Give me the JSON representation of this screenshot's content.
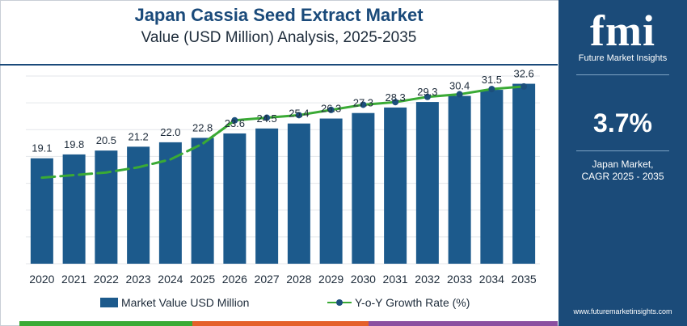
{
  "header": {
    "title": "Japan Cassia Seed Extract Market",
    "subtitle": "Value (USD Million) Analysis, 2025-2035"
  },
  "side_panel": {
    "logo_text": "fmi",
    "logo_tagline": "Future Market Insights",
    "cagr_value": "3.7%",
    "cagr_caption_line1": "Japan Market,",
    "cagr_caption_line2": "CAGR 2025 - 2035",
    "website": "www.futuremarketinsights.com"
  },
  "legend": {
    "bar_label": "Market Value USD Million",
    "line_label": "Y-o-Y Growth Rate (%)"
  },
  "colors": {
    "bar": "#1c5a8c",
    "line": "#3aaa35",
    "marker": "#1c4f7c",
    "brand": "#1b4b79",
    "footer_segments": [
      "#3aaa35",
      "#e4602a",
      "#8b4fa0",
      "#1b4b79"
    ]
  },
  "chart_data": {
    "type": "bar",
    "categories": [
      "2020",
      "2021",
      "2022",
      "2023",
      "2024",
      "2025",
      "2026",
      "2027",
      "2028",
      "2029",
      "2030",
      "2031",
      "2032",
      "2033",
      "2034",
      "2035"
    ],
    "series": [
      {
        "name": "Market Value USD Million",
        "type": "bar",
        "values": [
          19.1,
          19.8,
          20.5,
          21.2,
          22.0,
          22.8,
          23.6,
          24.5,
          25.4,
          26.3,
          27.3,
          28.3,
          29.3,
          30.4,
          31.5,
          32.6
        ],
        "labels": [
          "19.1",
          "19.8",
          "20.5",
          "21.2",
          "22.0",
          "22.8",
          "23.6",
          "24.5",
          "25.4",
          "26.3",
          "27.3",
          "28.3",
          "29.3",
          "30.4",
          "31.5",
          "32.6"
        ]
      },
      {
        "name": "Y-o-Y Growth Rate (%)",
        "type": "line",
        "markers_from_index": 6,
        "values": [
          3.3,
          3.4,
          3.5,
          3.7,
          4.0,
          4.6,
          5.5,
          5.6,
          5.7,
          5.9,
          6.1,
          6.2,
          6.4,
          6.5,
          6.7,
          6.8
        ]
      }
    ],
    "y_left_range": [
      0,
      34
    ],
    "y_right_range": [
      0,
      7.2
    ],
    "grid": true,
    "legend_position": "bottom"
  }
}
